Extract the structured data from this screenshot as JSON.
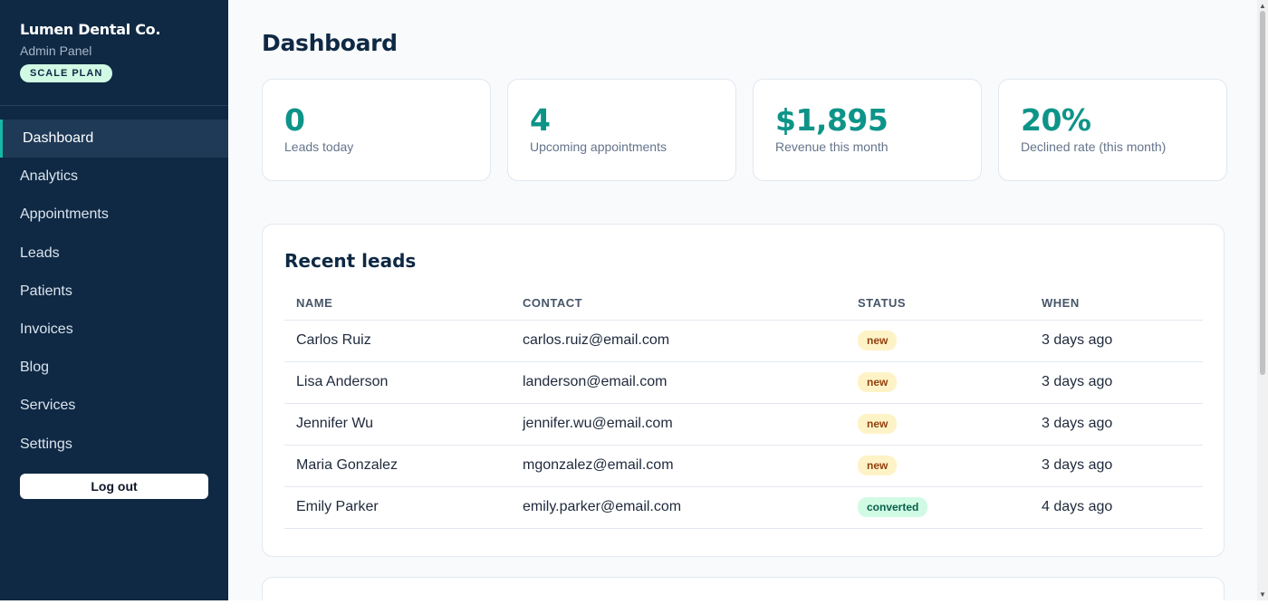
{
  "brand": {
    "name": "Lumen Dental Co.",
    "subtitle": "Admin Panel",
    "plan": "SCALE PLAN"
  },
  "nav": [
    {
      "label": "Dashboard",
      "active": true
    },
    {
      "label": "Analytics"
    },
    {
      "label": "Appointments"
    },
    {
      "label": "Leads"
    },
    {
      "label": "Patients"
    },
    {
      "label": "Invoices"
    },
    {
      "label": "Blog"
    },
    {
      "label": "Services"
    },
    {
      "label": "Settings"
    }
  ],
  "logout_label": "Log out",
  "page_title": "Dashboard",
  "stats": [
    {
      "value": "0",
      "label": "Leads today"
    },
    {
      "value": "4",
      "label": "Upcoming appointments"
    },
    {
      "value": "$1,895",
      "label": "Revenue this month"
    },
    {
      "value": "20%",
      "label": "Declined rate (this month)"
    }
  ],
  "recent_leads": {
    "title": "Recent leads",
    "columns": [
      "NAME",
      "CONTACT",
      "STATUS",
      "WHEN"
    ],
    "rows": [
      {
        "name": "Carlos Ruiz",
        "contact": "carlos.ruiz@email.com",
        "status": "new",
        "when": "3 days ago"
      },
      {
        "name": "Lisa Anderson",
        "contact": "landerson@email.com",
        "status": "new",
        "when": "3 days ago"
      },
      {
        "name": "Jennifer Wu",
        "contact": "jennifer.wu@email.com",
        "status": "new",
        "when": "3 days ago"
      },
      {
        "name": "Maria Gonzalez",
        "contact": "mgonzalez@email.com",
        "status": "new",
        "when": "3 days ago"
      },
      {
        "name": "Emily Parker",
        "contact": "emily.parker@email.com",
        "status": "converted",
        "when": "4 days ago"
      }
    ]
  },
  "colors": {
    "sidebar": "#0f2944",
    "accent": "#0d9488",
    "new_badge": "#fef3c7",
    "converted_badge": "#d1fae5"
  }
}
